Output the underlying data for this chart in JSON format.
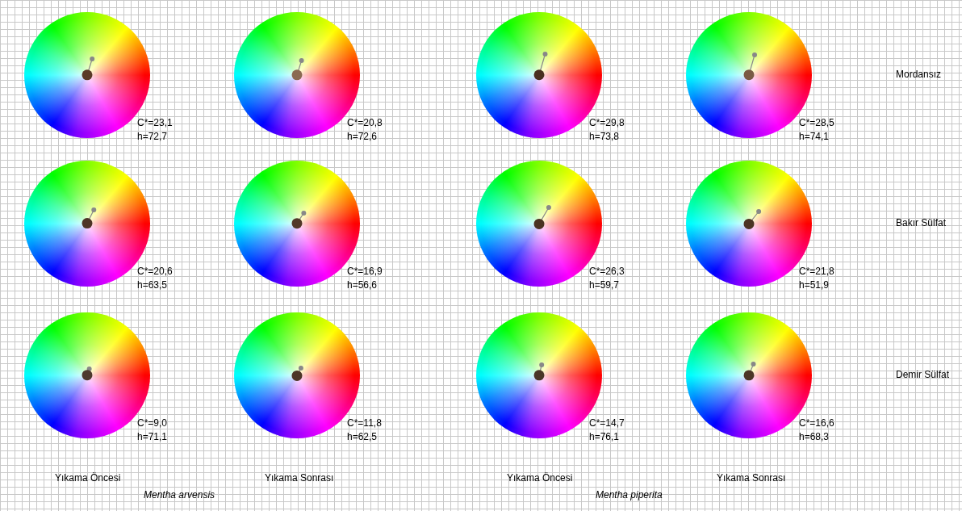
{
  "chart_data": [
    {
      "type": "other",
      "values": [
        23.1,
        72.7
      ],
      "value_labels": [
        "C*=23,1",
        "h=72,7"
      ],
      "color": "#5a3a28"
    },
    {
      "type": "other",
      "values": [
        20.8,
        72.6
      ],
      "value_labels": [
        "C*=20,8",
        "h=72,6"
      ],
      "color": "#8a6a52"
    },
    {
      "type": "other",
      "values": [
        29.8,
        73.8
      ],
      "value_labels": [
        "C*=29,8",
        "h=73,8"
      ],
      "color": "#4a3020"
    },
    {
      "type": "other",
      "values": [
        28.5,
        74.1
      ],
      "value_labels": [
        "C*=28,5",
        "h=74,1"
      ],
      "color": "#7a5a44",
      "ylabel": "Mordansız"
    },
    {
      "type": "other",
      "values": [
        20.6,
        63.5
      ],
      "value_labels": [
        "C*=20,6",
        "h=63,5"
      ],
      "color": "#4e3426"
    },
    {
      "type": "other",
      "values": [
        16.9,
        56.6
      ],
      "value_labels": [
        "C*=16,9",
        "h=56,6"
      ],
      "color": "#523828"
    },
    {
      "type": "other",
      "values": [
        26.3,
        59.7
      ],
      "value_labels": [
        "C*=26,3",
        "h=59,7"
      ],
      "color": "#4a3222"
    },
    {
      "type": "other",
      "values": [
        21.8,
        51.9
      ],
      "value_labels": [
        "C*=21,8",
        "h=51,9"
      ],
      "color": "#4c3424",
      "ylabel": "Bakır Sülfat"
    },
    {
      "type": "other",
      "values": [
        9.0,
        71.1
      ],
      "value_labels": [
        "C*=9,0",
        "h=71,1"
      ],
      "color": "#4e3a2e",
      "xlabel": "Yıkama Öncesi",
      "annotations": [
        "Mentha arvensis"
      ]
    },
    {
      "type": "other",
      "values": [
        11.8,
        62.5
      ],
      "value_labels": [
        "C*=11,8",
        "h=62,5"
      ],
      "color": "#4c3628",
      "xlabel": "Yıkama Sonrası"
    },
    {
      "type": "other",
      "values": [
        14.7,
        76.1
      ],
      "value_labels": [
        "C*=14,7",
        "h=76,1"
      ],
      "color": "#4a3628",
      "xlabel": "Yıkama Öncesi",
      "annotations": [
        "Mentha piperita"
      ]
    },
    {
      "type": "other",
      "values": [
        16.6,
        68.3
      ],
      "value_labels": [
        "C*=16,6",
        "h=68,3"
      ],
      "color": "#4c3626",
      "xlabel": "Yıkama Sonrası",
      "ylabel": "Demir Sülfat"
    }
  ]
}
